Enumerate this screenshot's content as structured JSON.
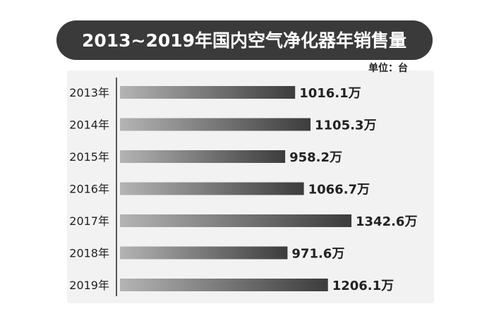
{
  "chart_data": {
    "type": "bar",
    "orientation": "horizontal",
    "title": "2013~2019年国内空气净化器年销售量",
    "unit_label": "单位：台",
    "value_suffix": "万",
    "categories": [
      "2013年",
      "2014年",
      "2015年",
      "2016年",
      "2017年",
      "2018年",
      "2019年"
    ],
    "values": [
      1016.1,
      1105.3,
      958.2,
      1066.7,
      1342.6,
      971.6,
      1206.1
    ],
    "value_labels": [
      "1016.1万",
      "1105.3万",
      "958.2万",
      "1066.7万",
      "1342.6万",
      "971.6万",
      "1206.1万"
    ],
    "xlim": [
      0,
      1342.6
    ],
    "grid": false,
    "legend": "none",
    "colors": {
      "title_bg": "#3a3a3a",
      "title_text": "#ffffff",
      "bar_light": "#b4b4b4",
      "bar_dark": "#3c3c3c",
      "background_panel": "#f2f2f2",
      "text": "#222222"
    }
  }
}
